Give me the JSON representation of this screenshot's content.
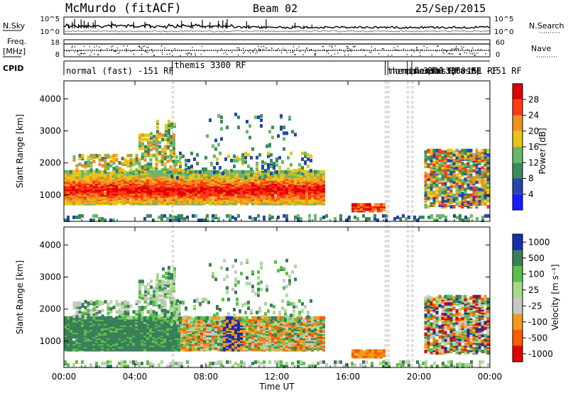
{
  "header": {
    "title": "McMurdo (fitACF)",
    "beam": "Beam 02",
    "date": "25/Sep/2015"
  },
  "noise_panel": {
    "left_label": "N.Sky",
    "right_label": "N.Search",
    "left_ticks": [
      "10^5",
      "10^0"
    ],
    "right_ticks": [
      "10^5",
      "10^0"
    ]
  },
  "freq_panel": {
    "left_label_1": "Freq.",
    "left_label_2": "[MHz]",
    "right_label": "Nave",
    "left_ticks": [
      "18",
      "8"
    ],
    "right_ticks": [
      "60",
      "0"
    ]
  },
  "cpid": {
    "label": "CPID",
    "segments": [
      {
        "start": 0.0,
        "text": "normal (fast) -151 RF"
      },
      {
        "start": 6.1,
        "text": "themis 3300 RF"
      },
      {
        "start": 18.1,
        "text": "themis 3300 RF"
      },
      {
        "start": 18.25,
        "text": "normal (fast) -151 RF"
      },
      {
        "start": 19.35,
        "text": "themis 3300 RF"
      },
      {
        "start": 19.6,
        "text": "normal (fast) -151 RF"
      }
    ]
  },
  "colors": {
    "power": [
      "#1a1aff",
      "#2646a8",
      "#3a8a5a",
      "#68b86a",
      "#e8c41a",
      "#f09020",
      "#ff3a14",
      "#e00000"
    ],
    "velocity": [
      "#e00000",
      "#ff5a00",
      "#f09a1c",
      "#c8c8c8",
      "#a8d890",
      "#5ac048",
      "#3a7e5a",
      "#1a2ea8"
    ]
  },
  "chart_data": [
    {
      "type": "heatmap",
      "name": "power",
      "xlabel": "",
      "ylabel": "Slant Range [km]",
      "xlim": [
        0,
        24
      ],
      "ylim": [
        180,
        4560
      ],
      "yticks": [
        1000,
        2000,
        3000,
        4000
      ],
      "colorbar": {
        "label": "Power [dB]",
        "range": [
          0,
          32
        ],
        "ticks": [
          "4",
          "8",
          "12",
          "16",
          "20",
          "24",
          "28"
        ]
      }
    },
    {
      "type": "heatmap",
      "name": "velocity",
      "xlabel": "Time UT",
      "ylabel": "Slant Range [km]",
      "xlim": [
        0,
        24
      ],
      "ylim": [
        180,
        4560
      ],
      "yticks": [
        1000,
        2000,
        3000,
        4000
      ],
      "xticks": [
        "00:00",
        "04:00",
        "08:00",
        "12:00",
        "16:00",
        "20:00",
        "00:00"
      ],
      "colorbar": {
        "label": "Velocity [m s⁻¹]",
        "ticks": [
          "1000",
          "500",
          "100",
          "25",
          "-25",
          "-100",
          "-500",
          "-1000"
        ]
      }
    }
  ]
}
